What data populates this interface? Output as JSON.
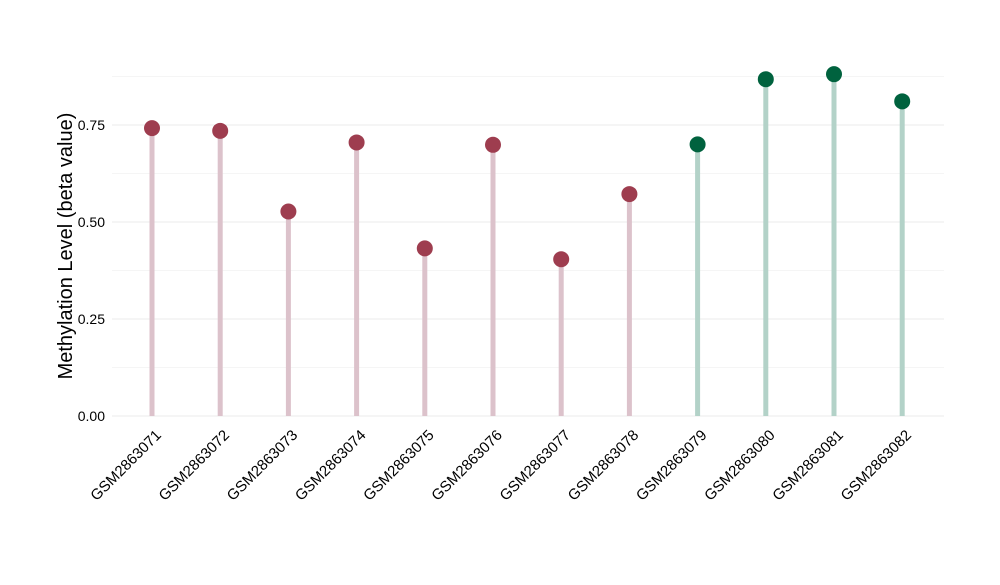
{
  "chart_data": {
    "type": "lollipop",
    "title": "",
    "xlabel": "",
    "ylabel": "Methylation Level (beta value)",
    "ylim": [
      0,
      0.925
    ],
    "yticks": [
      0.0,
      0.25,
      0.5,
      0.75
    ],
    "ytick_labels": [
      "0.00",
      "0.25",
      "0.50",
      "0.75"
    ],
    "grid": true,
    "legend": "none",
    "categories": [
      "GSM2863071",
      "GSM2863072",
      "GSM2863073",
      "GSM2863074",
      "GSM2863075",
      "GSM2863076",
      "GSM2863077",
      "GSM2863078",
      "GSM2863079",
      "GSM2863080",
      "GSM2863081",
      "GSM2863082"
    ],
    "values": [
      0.742,
      0.735,
      0.527,
      0.705,
      0.432,
      0.699,
      0.404,
      0.572,
      0.7,
      0.868,
      0.881,
      0.811
    ],
    "groups": [
      "a",
      "a",
      "a",
      "a",
      "a",
      "a",
      "a",
      "a",
      "b",
      "b",
      "b",
      "b"
    ],
    "colors": {
      "a": {
        "point": "#9E3D4F",
        "stem": "#DCC2CB"
      },
      "b": {
        "point": "#00623E",
        "stem": "#B3D2C8"
      },
      "grid": "#EBEBEB",
      "text": "#000000"
    }
  }
}
